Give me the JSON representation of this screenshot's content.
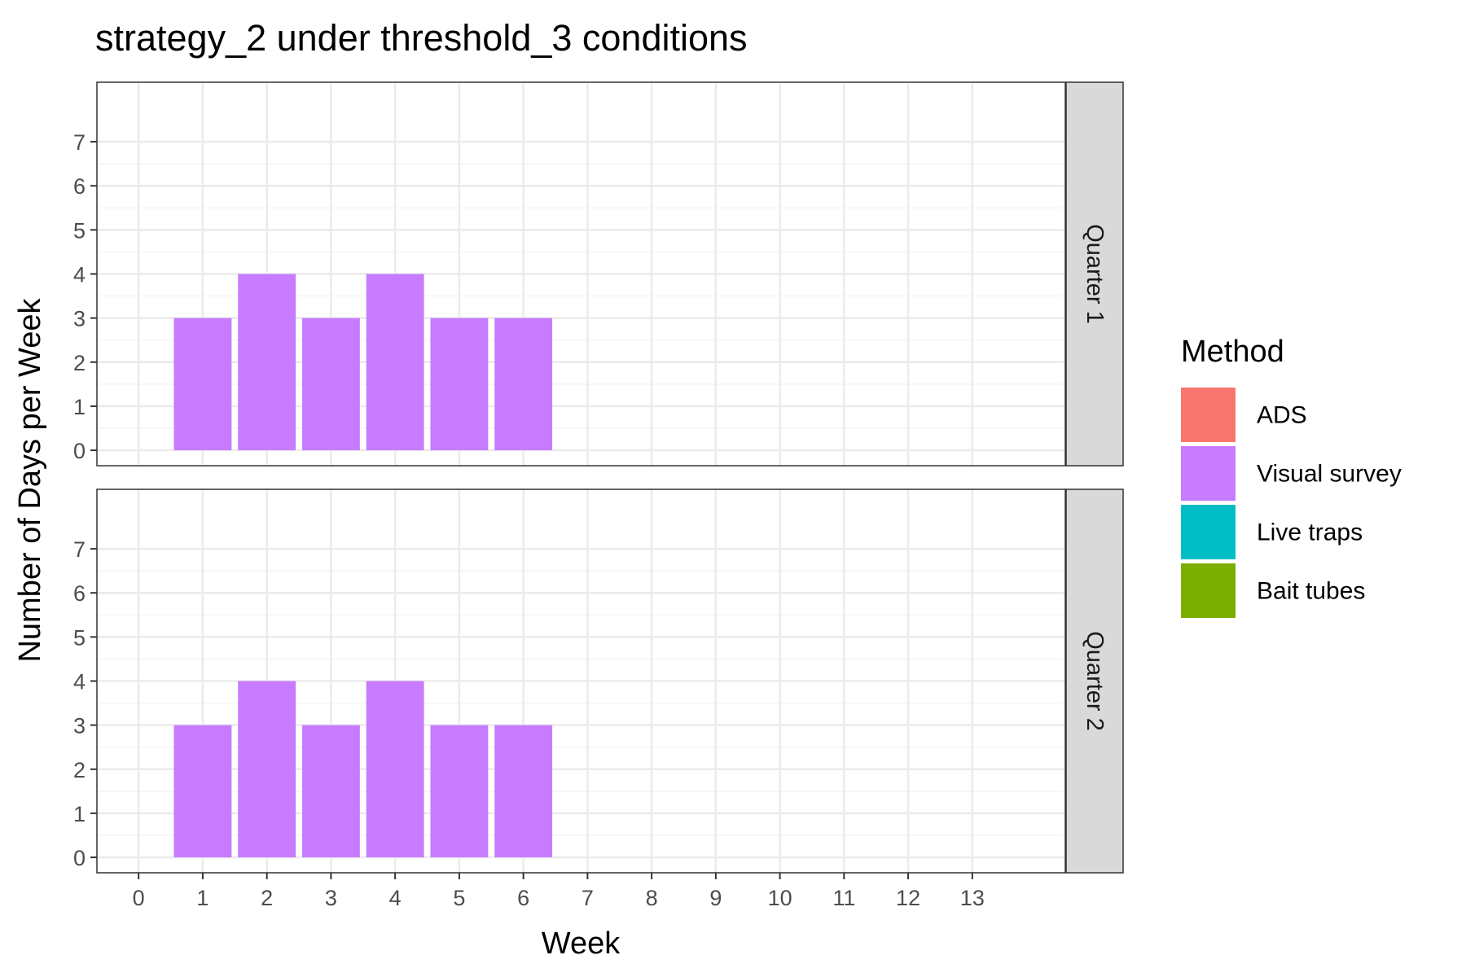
{
  "chart_data": {
    "type": "bar",
    "title": "strategy_2 under threshold_3 conditions",
    "xlabel": "Week",
    "ylabel": "Number of Days per Week",
    "x_ticks": [
      0,
      1,
      2,
      3,
      4,
      5,
      6,
      7,
      8,
      9,
      10,
      11,
      12,
      13
    ],
    "y_ticks": [
      0,
      1,
      2,
      3,
      4,
      5,
      6,
      7
    ],
    "xlim": [
      -0.65,
      14.45
    ],
    "ylim": [
      -0.35,
      8.35
    ],
    "grid": true,
    "facet_direction": "rows",
    "legend": {
      "title": "Method",
      "position": "right",
      "entries": [
        {
          "label": "ADS",
          "color": "#F8766D"
        },
        {
          "label": "Visual survey",
          "color": "#C77CFF"
        },
        {
          "label": "Live traps",
          "color": "#00BFC4"
        },
        {
          "label": "Bait tubes",
          "color": "#7CAE00"
        }
      ]
    },
    "panels": [
      {
        "label": "Quarter 1",
        "series": [
          {
            "name": "Visual survey",
            "color": "#C77CFF",
            "x": [
              1,
              2,
              3,
              4,
              5,
              6
            ],
            "values": [
              3,
              4,
              3,
              4,
              3,
              3
            ]
          }
        ]
      },
      {
        "label": "Quarter 2",
        "series": [
          {
            "name": "Visual survey",
            "color": "#C77CFF",
            "x": [
              1,
              2,
              3,
              4,
              5,
              6
            ],
            "values": [
              3,
              4,
              3,
              4,
              3,
              3
            ]
          }
        ]
      }
    ]
  }
}
